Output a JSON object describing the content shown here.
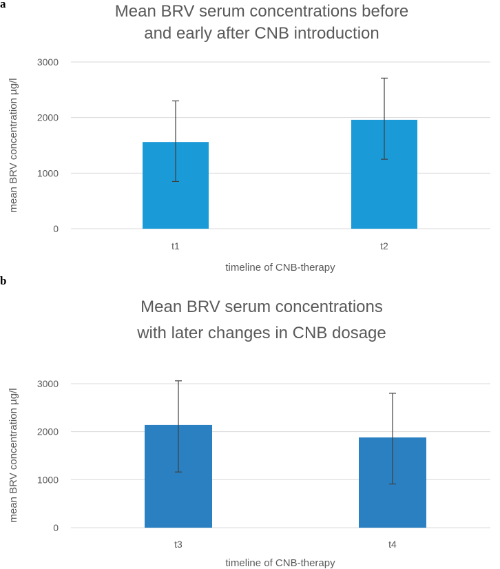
{
  "panels": [
    {
      "label": "a"
    },
    {
      "label": "b"
    }
  ],
  "chart_data": [
    {
      "type": "bar",
      "title": [
        "Mean BRV serum concentrations before",
        "and early after CNB introduction"
      ],
      "categories": [
        "t1",
        "t2"
      ],
      "values": [
        1560,
        1960
      ],
      "error_low": [
        850,
        1250
      ],
      "error_high": [
        2300,
        2710
      ],
      "xlabel": "timeline of CNB-therapy",
      "ylabel": "mean BRV concentration µg/l",
      "ylim": [
        0,
        3000
      ],
      "yticks": [
        0,
        1000,
        2000,
        3000
      ],
      "grid": true,
      "bar_color": "#1a9bd7"
    },
    {
      "type": "bar",
      "title": [
        "Mean BRV serum concentrations",
        "with later changes in CNB dosage"
      ],
      "categories": [
        "t3",
        "t4"
      ],
      "values": [
        2140,
        1880
      ],
      "error_low": [
        1160,
        910
      ],
      "error_high": [
        3060,
        2800
      ],
      "xlabel": "timeline of CNB-therapy",
      "ylabel": "mean BRV concentration µg/l",
      "ylim": [
        0,
        3000
      ],
      "yticks": [
        0,
        1000,
        2000,
        3000
      ],
      "grid": true,
      "bar_color": "#2a80c1"
    }
  ]
}
